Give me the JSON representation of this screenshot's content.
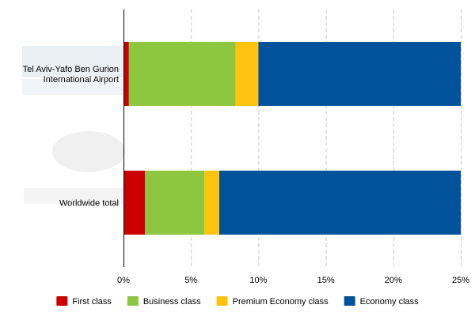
{
  "chart_data": {
    "type": "bar",
    "orientation": "horizontal",
    "stacked": true,
    "title": "",
    "xlabel": "",
    "ylabel": "",
    "categories": [
      [
        "Tel Aviv-Yafo Ben Gurion",
        "International Airport"
      ],
      [
        "Worldwide total"
      ]
    ],
    "series": [
      {
        "name": "First class",
        "color": "#cc0000",
        "values": [
          0.4,
          1.6
        ]
      },
      {
        "name": "Business class",
        "color": "#8dc63f",
        "values": [
          7.9,
          4.4
        ]
      },
      {
        "name": "Premium Economy class",
        "color": "#ffc20e",
        "values": [
          1.7,
          1.1
        ]
      },
      {
        "name": "Economy class",
        "color": "#00529b",
        "values": [
          15.0,
          17.9
        ]
      }
    ],
    "xlim": [
      0,
      25
    ],
    "xticks": [
      0,
      5,
      10,
      15,
      20,
      25
    ],
    "tick_suffix": "%",
    "grid": "vertical-dashed",
    "legend": "bottom"
  },
  "colors": {
    "axis": "#000000",
    "grid": "#cccccc"
  }
}
